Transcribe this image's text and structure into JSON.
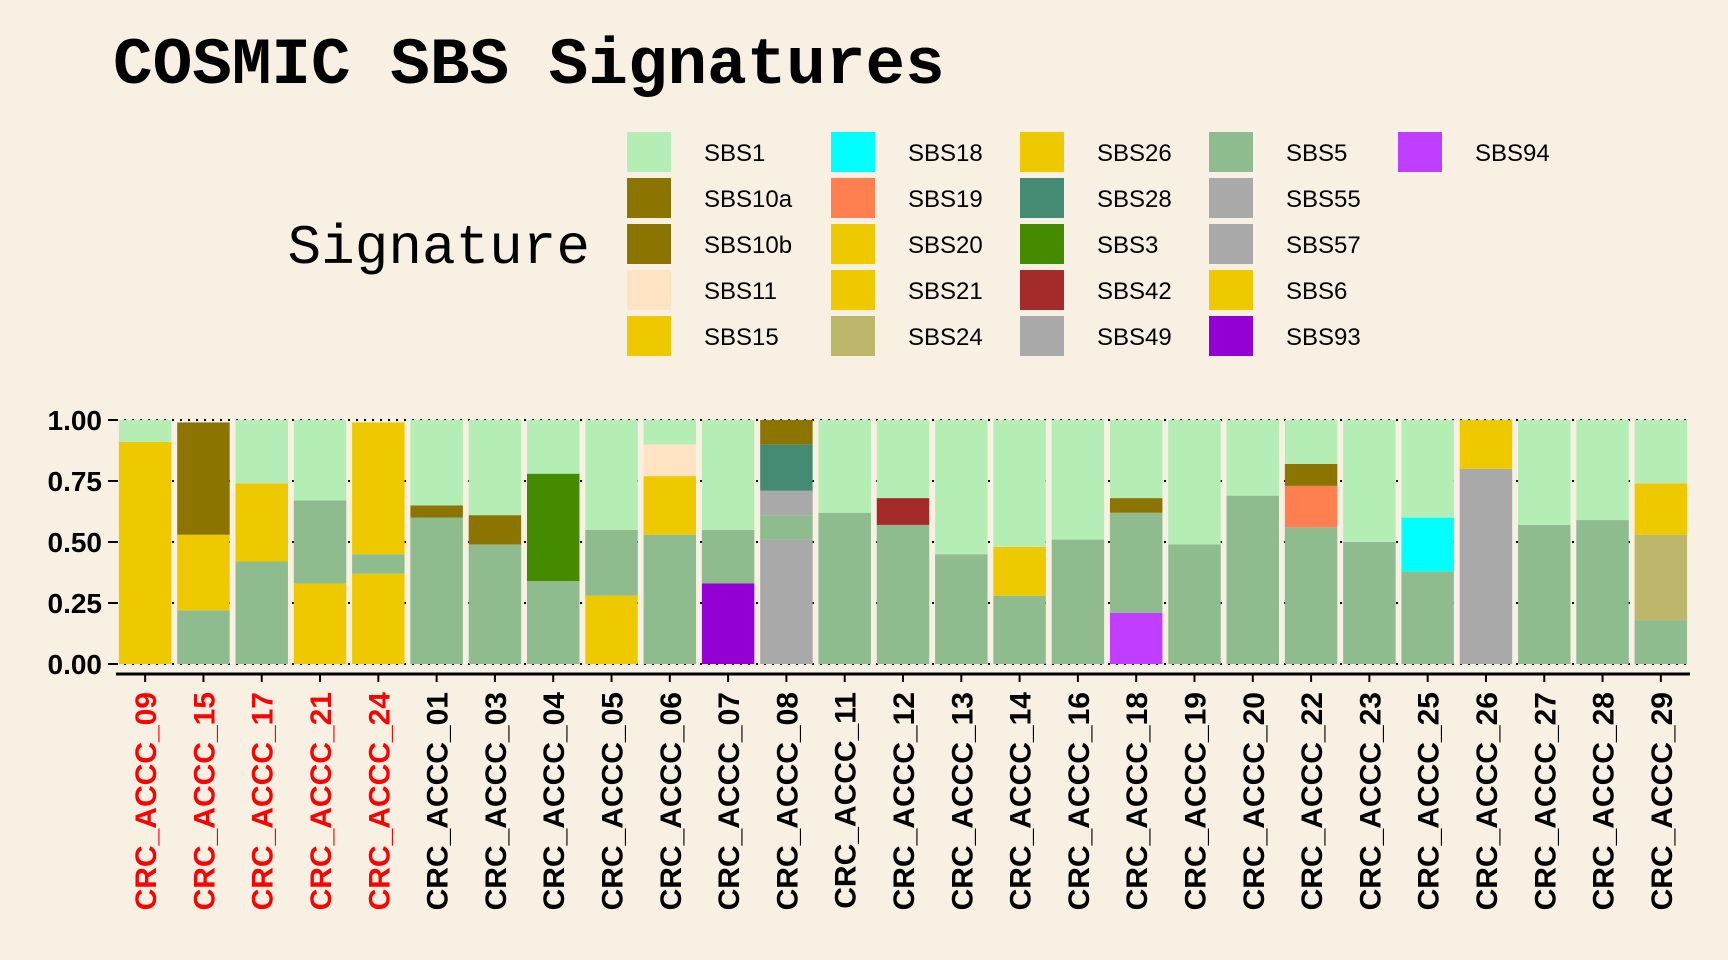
{
  "chart_data": {
    "type": "bar",
    "stacked": true,
    "title": "COSMIC SBS Signatures",
    "legend_title": "Signature",
    "legend_position": "top",
    "ylim": [
      0,
      1
    ],
    "yticks": [
      "0.00",
      "0.25",
      "0.50",
      "0.75",
      "1.00"
    ],
    "grid": "dotted horizontal at major ticks",
    "categories": [
      "CRC_ACCC_09",
      "CRC_ACCC_15",
      "CRC_ACCC_17",
      "CRC_ACCC_21",
      "CRC_ACCC_24",
      "CRC_ACCC_01",
      "CRC_ACCC_03",
      "CRC_ACCC_04",
      "CRC_ACCC_05",
      "CRC_ACCC_06",
      "CRC_ACCC_07",
      "CRC_ACCC_08",
      "CRC_ACCC_11",
      "CRC_ACCC_12",
      "CRC_ACCC_13",
      "CRC_ACCC_14",
      "CRC_ACCC_16",
      "CRC_ACCC_18",
      "CRC_ACCC_19",
      "CRC_ACCC_20",
      "CRC_ACCC_22",
      "CRC_ACCC_23",
      "CRC_ACCC_25",
      "CRC_ACCC_26",
      "CRC_ACCC_27",
      "CRC_ACCC_28",
      "CRC_ACCC_29"
    ],
    "category_colors": [
      "#ff0000",
      "#ff0000",
      "#ff0000",
      "#ff0000",
      "#ff0000",
      "#000000",
      "#000000",
      "#000000",
      "#000000",
      "#000000",
      "#000000",
      "#000000",
      "#000000",
      "#000000",
      "#000000",
      "#000000",
      "#000000",
      "#000000",
      "#000000",
      "#000000",
      "#000000",
      "#000000",
      "#000000",
      "#000000",
      "#000000",
      "#000000",
      "#000000"
    ],
    "signatures": [
      {
        "name": "SBS1",
        "color": "#b5eeb5"
      },
      {
        "name": "SBS10a",
        "color": "#8b7500"
      },
      {
        "name": "SBS10b",
        "color": "#8b7500"
      },
      {
        "name": "SBS11",
        "color": "#ffe4c4"
      },
      {
        "name": "SBS15",
        "color": "#eec900"
      },
      {
        "name": "SBS18",
        "color": "#00ffff"
      },
      {
        "name": "SBS19",
        "color": "#ff7f50"
      },
      {
        "name": "SBS20",
        "color": "#eec900"
      },
      {
        "name": "SBS21",
        "color": "#eec900"
      },
      {
        "name": "SBS24",
        "color": "#bdb76b"
      },
      {
        "name": "SBS26",
        "color": "#eec900"
      },
      {
        "name": "SBS28",
        "color": "#458b74"
      },
      {
        "name": "SBS3",
        "color": "#458b00"
      },
      {
        "name": "SBS42",
        "color": "#a52a2a"
      },
      {
        "name": "SBS49",
        "color": "#a9a9a9"
      },
      {
        "name": "SBS5",
        "color": "#8fbc8f"
      },
      {
        "name": "SBS55",
        "color": "#a9a9a9"
      },
      {
        "name": "SBS57",
        "color": "#a9a9a9"
      },
      {
        "name": "SBS6",
        "color": "#eec900"
      },
      {
        "name": "SBS93",
        "color": "#9400d3"
      },
      {
        "name": "SBS94",
        "color": "#bf3eff"
      }
    ],
    "bars": [
      {
        "category": "CRC_ACCC_09",
        "segments": [
          {
            "sig": "SBS6",
            "value": 0.91
          },
          {
            "sig": "SBS1",
            "value": 0.09
          }
        ]
      },
      {
        "category": "CRC_ACCC_15",
        "segments": [
          {
            "sig": "SBS5",
            "value": 0.22
          },
          {
            "sig": "SBS6",
            "value": 0.31
          },
          {
            "sig": "SBS10a",
            "value": 0.46
          }
        ]
      },
      {
        "category": "CRC_ACCC_17",
        "segments": [
          {
            "sig": "SBS5",
            "value": 0.42
          },
          {
            "sig": "SBS6",
            "value": 0.32
          },
          {
            "sig": "SBS1",
            "value": 0.26
          }
        ]
      },
      {
        "category": "CRC_ACCC_21",
        "segments": [
          {
            "sig": "SBS6",
            "value": 0.33
          },
          {
            "sig": "SBS5",
            "value": 0.34
          },
          {
            "sig": "SBS1",
            "value": 0.33
          }
        ]
      },
      {
        "category": "CRC_ACCC_24",
        "segments": [
          {
            "sig": "SBS6",
            "value": 0.37
          },
          {
            "sig": "SBS5",
            "value": 0.08
          },
          {
            "sig": "SBS26",
            "value": 0.54
          }
        ]
      },
      {
        "category": "CRC_ACCC_01",
        "segments": [
          {
            "sig": "SBS5",
            "value": 0.6
          },
          {
            "sig": "SBS10a",
            "value": 0.05
          },
          {
            "sig": "SBS1",
            "value": 0.35
          }
        ]
      },
      {
        "category": "CRC_ACCC_03",
        "segments": [
          {
            "sig": "SBS5",
            "value": 0.49
          },
          {
            "sig": "SBS10a",
            "value": 0.12
          },
          {
            "sig": "SBS1",
            "value": 0.39
          }
        ]
      },
      {
        "category": "CRC_ACCC_04",
        "segments": [
          {
            "sig": "SBS5",
            "value": 0.34
          },
          {
            "sig": "SBS3",
            "value": 0.44
          },
          {
            "sig": "SBS1",
            "value": 0.22
          }
        ]
      },
      {
        "category": "CRC_ACCC_05",
        "segments": [
          {
            "sig": "SBS6",
            "value": 0.28
          },
          {
            "sig": "SBS5",
            "value": 0.27
          },
          {
            "sig": "SBS1",
            "value": 0.45
          }
        ]
      },
      {
        "category": "CRC_ACCC_06",
        "segments": [
          {
            "sig": "SBS5",
            "value": 0.53
          },
          {
            "sig": "SBS6",
            "value": 0.24
          },
          {
            "sig": "SBS11",
            "value": 0.13
          },
          {
            "sig": "SBS1",
            "value": 0.1
          }
        ]
      },
      {
        "category": "CRC_ACCC_07",
        "segments": [
          {
            "sig": "SBS93",
            "value": 0.33
          },
          {
            "sig": "SBS5",
            "value": 0.22
          },
          {
            "sig": "SBS1",
            "value": 0.45
          }
        ]
      },
      {
        "category": "CRC_ACCC_08",
        "segments": [
          {
            "sig": "SBS49",
            "value": 0.51
          },
          {
            "sig": "SBS5",
            "value": 0.1
          },
          {
            "sig": "SBS55",
            "value": 0.1
          },
          {
            "sig": "SBS28",
            "value": 0.19
          },
          {
            "sig": "SBS10a",
            "value": 0.1
          }
        ]
      },
      {
        "category": "CRC_ACCC_11",
        "segments": [
          {
            "sig": "SBS5",
            "value": 0.62
          },
          {
            "sig": "SBS1",
            "value": 0.38
          }
        ]
      },
      {
        "category": "CRC_ACCC_12",
        "segments": [
          {
            "sig": "SBS5",
            "value": 0.57
          },
          {
            "sig": "SBS42",
            "value": 0.11
          },
          {
            "sig": "SBS1",
            "value": 0.32
          }
        ]
      },
      {
        "category": "CRC_ACCC_13",
        "segments": [
          {
            "sig": "SBS5",
            "value": 0.45
          },
          {
            "sig": "SBS1",
            "value": 0.55
          }
        ]
      },
      {
        "category": "CRC_ACCC_14",
        "segments": [
          {
            "sig": "SBS5",
            "value": 0.28
          },
          {
            "sig": "SBS6",
            "value": 0.2
          },
          {
            "sig": "SBS1",
            "value": 0.52
          }
        ]
      },
      {
        "category": "CRC_ACCC_16",
        "segments": [
          {
            "sig": "SBS5",
            "value": 0.51
          },
          {
            "sig": "SBS1",
            "value": 0.49
          }
        ]
      },
      {
        "category": "CRC_ACCC_18",
        "segments": [
          {
            "sig": "SBS94",
            "value": 0.21
          },
          {
            "sig": "SBS5",
            "value": 0.41
          },
          {
            "sig": "SBS10a",
            "value": 0.06
          },
          {
            "sig": "SBS1",
            "value": 0.32
          }
        ]
      },
      {
        "category": "CRC_ACCC_19",
        "segments": [
          {
            "sig": "SBS5",
            "value": 0.49
          },
          {
            "sig": "SBS1",
            "value": 0.51
          }
        ]
      },
      {
        "category": "CRC_ACCC_20",
        "segments": [
          {
            "sig": "SBS5",
            "value": 0.69
          },
          {
            "sig": "SBS1",
            "value": 0.31
          }
        ]
      },
      {
        "category": "CRC_ACCC_22",
        "segments": [
          {
            "sig": "SBS5",
            "value": 0.56
          },
          {
            "sig": "SBS19",
            "value": 0.17
          },
          {
            "sig": "SBS10a",
            "value": 0.09
          },
          {
            "sig": "SBS1",
            "value": 0.18
          }
        ]
      },
      {
        "category": "CRC_ACCC_23",
        "segments": [
          {
            "sig": "SBS5",
            "value": 0.5
          },
          {
            "sig": "SBS1",
            "value": 0.5
          }
        ]
      },
      {
        "category": "CRC_ACCC_25",
        "segments": [
          {
            "sig": "SBS5",
            "value": 0.38
          },
          {
            "sig": "SBS18",
            "value": 0.22
          },
          {
            "sig": "SBS1",
            "value": 0.4
          }
        ]
      },
      {
        "category": "CRC_ACCC_26",
        "segments": [
          {
            "sig": "SBS57",
            "value": 0.8
          },
          {
            "sig": "SBS6",
            "value": 0.2
          }
        ]
      },
      {
        "category": "CRC_ACCC_27",
        "segments": [
          {
            "sig": "SBS5",
            "value": 0.57
          },
          {
            "sig": "SBS1",
            "value": 0.43
          }
        ]
      },
      {
        "category": "CRC_ACCC_28",
        "segments": [
          {
            "sig": "SBS5",
            "value": 0.59
          },
          {
            "sig": "SBS1",
            "value": 0.41
          }
        ]
      },
      {
        "category": "CRC_ACCC_29",
        "segments": [
          {
            "sig": "SBS5",
            "value": 0.18
          },
          {
            "sig": "SBS24",
            "value": 0.35
          },
          {
            "sig": "SBS6",
            "value": 0.21
          },
          {
            "sig": "SBS1",
            "value": 0.26
          }
        ]
      }
    ]
  }
}
